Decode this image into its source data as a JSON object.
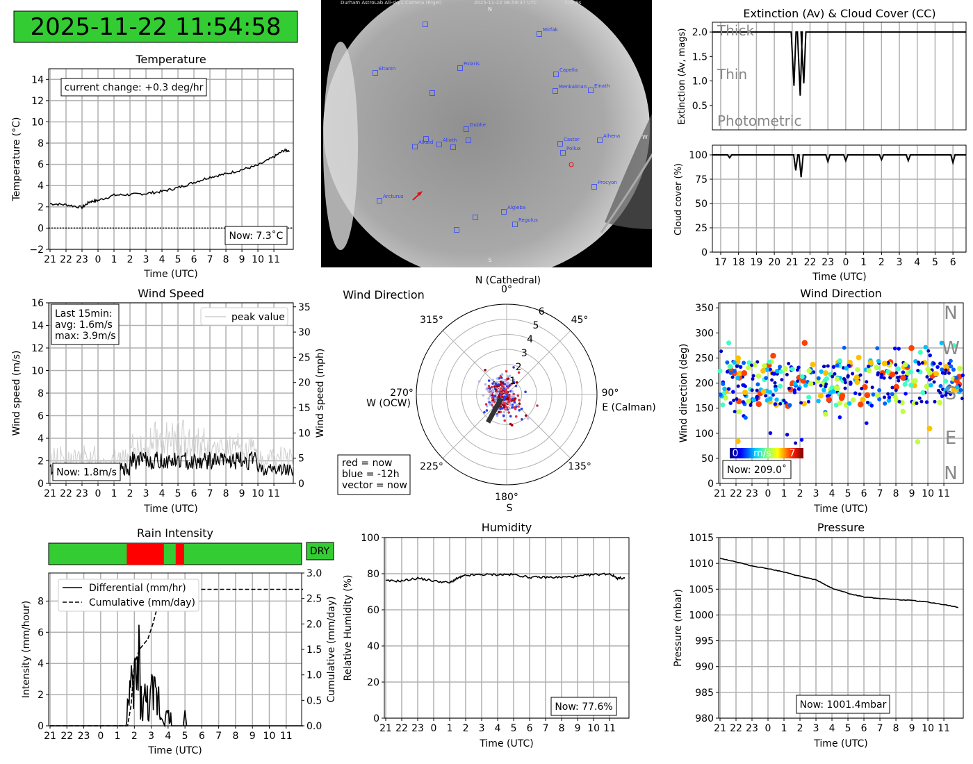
{
  "clock": {
    "datetime": "2025-11-22 11:54:58",
    "bg_color": "#33cc33"
  },
  "sky_camera": {
    "header": "Durham AstroLab All-sky1 Camera (Rigel)",
    "timestamp": "2025-11-22 06:59:37 UTC",
    "exposure": "t=0.9s",
    "compass": [
      "N",
      "W",
      "S"
    ],
    "stars": [
      "Mirfak",
      "Polaris",
      "Eltanin",
      "Capella",
      "Menkalinan",
      "Elnath",
      "Alioth",
      "Dubhe",
      "Alkaid",
      "Castor",
      "Pollux",
      "Alhena",
      "Procyon",
      "Arcturus",
      "Algieba",
      "Regulus"
    ]
  },
  "time_ticks_21": [
    "21",
    "22",
    "23",
    "0",
    "1",
    "2",
    "3",
    "4",
    "5",
    "6",
    "7",
    "8",
    "9",
    "10",
    "11"
  ],
  "time_ticks_17": [
    "17",
    "18",
    "19",
    "20",
    "21",
    "22",
    "23",
    "0",
    "1",
    "2",
    "3",
    "4",
    "5",
    "6"
  ],
  "chart_data": [
    {
      "id": "temperature",
      "type": "line",
      "title": "Temperature",
      "xlabel": "Time (UTC)",
      "ylabel": "Temperature (°C)",
      "ylim": [
        -2,
        15
      ],
      "yticks": [
        "−2",
        "0",
        "2",
        "4",
        "6",
        "8",
        "10",
        "12",
        "14"
      ],
      "x": [
        0,
        1,
        2,
        2.5,
        3,
        4,
        5,
        6,
        7,
        8,
        9,
        10,
        11,
        12,
        13,
        14,
        14.6,
        15
      ],
      "values": [
        2.3,
        2.2,
        1.95,
        2.5,
        2.6,
        3.1,
        3.15,
        3.25,
        3.45,
        3.8,
        4.3,
        4.8,
        5.1,
        5.5,
        5.9,
        6.7,
        7.3,
        7.3
      ],
      "annotation": "current change: +0.3 deg/hr",
      "now_label": "Now: 7.3˚C"
    },
    {
      "id": "extinction",
      "type": "line",
      "title": "Extinction (Av) & Cloud Cover (CC)",
      "ylabel": "Extinction (Av, mags)",
      "ylim": [
        0,
        2.2
      ],
      "yticks": [
        "0.5",
        "1.0",
        "1.5",
        "2.0"
      ],
      "bands": [
        "Thick",
        "Thin",
        "Photometric"
      ],
      "dips": [
        [
          4.1,
          0.9
        ],
        [
          4.45,
          0.7
        ],
        [
          4.65,
          0.95
        ]
      ],
      "baseline": 2.0
    },
    {
      "id": "cloud_cover",
      "type": "line",
      "ylabel": "Cloud cover (%)",
      "xlabel": "Time (UTC)",
      "ylim": [
        0,
        100
      ],
      "yticks": [
        "0",
        "25",
        "50",
        "75",
        "100"
      ],
      "dips": [
        [
          0.5,
          97
        ],
        [
          4.2,
          84
        ],
        [
          4.5,
          77
        ],
        [
          6,
          93
        ],
        [
          7,
          94
        ],
        [
          9,
          95
        ],
        [
          10.5,
          94
        ],
        [
          13,
          92
        ]
      ],
      "baseline": 100
    },
    {
      "id": "wind_speed",
      "type": "line",
      "title": "Wind Speed",
      "xlabel": "Time (UTC)",
      "ylabel": "Wind speed (m/s)",
      "ylabel2": "Wind speed (mph)",
      "ylim": [
        0,
        16
      ],
      "yticks": [
        "0",
        "2",
        "4",
        "6",
        "8",
        "10",
        "12",
        "14",
        "16"
      ],
      "y2ticks": [
        "0",
        "5",
        "10",
        "15",
        "20",
        "25",
        "30",
        "35"
      ],
      "legend": "peak value",
      "stats_lines": [
        "Last 15min:",
        "avg: 1.6m/s",
        "max: 3.9m/s"
      ],
      "now_label": "Now: 1.8m/s"
    },
    {
      "id": "wind_rose",
      "type": "scatter",
      "title": "Wind Direction",
      "direction_labels": [
        "N (Cathedral)",
        "0°",
        "45°",
        "90°",
        "E (Calman)",
        "135°",
        "180°",
        "S",
        "225°",
        "270°",
        "W (OCW)",
        "315°"
      ],
      "rlabels": [
        "1",
        "2",
        "3",
        "4",
        "5",
        "6"
      ],
      "rmax": 6,
      "legend_lines": [
        "red = now",
        "blue = -12h",
        "vector = now"
      ],
      "vector_dir_deg": 209,
      "vector_speed": 1.8
    },
    {
      "id": "wind_direction",
      "type": "scatter",
      "title": "Wind Direction",
      "xlabel": "Time (UTC)",
      "ylabel": "Wind direction (deg)",
      "ylim": [
        0,
        360
      ],
      "yticks": [
        "0",
        "50",
        "100",
        "150",
        "200",
        "250",
        "300",
        "350"
      ],
      "compass": [
        "N",
        "W",
        "S",
        "E",
        "N"
      ],
      "colorbar": {
        "min": "0",
        "unit": "m/s",
        "max": "7"
      },
      "now_label": "Now: 209.0˚"
    },
    {
      "id": "rain",
      "type": "line",
      "title": "Rain Intensity",
      "status": "DRY",
      "xlabel": "Time (UTC)",
      "ylabel": "Intensity (mm/hour)",
      "ylabel2": "Cumulative (mm/day)",
      "ylim": [
        0,
        9.8
      ],
      "yticks": [
        "0",
        "2",
        "4",
        "6",
        "8"
      ],
      "y2ticks": [
        "0.0",
        "0.5",
        "1.0",
        "1.5",
        "2.0",
        "2.5",
        "3.0"
      ],
      "legend": [
        "Differential (mm/hr)",
        "Cumulative (mm/day)"
      ],
      "cumulative": [
        [
          0,
          0
        ],
        [
          4.6,
          0
        ],
        [
          4.8,
          0.4
        ],
        [
          5.0,
          1.2
        ],
        [
          5.3,
          1.5
        ],
        [
          5.8,
          1.7
        ],
        [
          6.1,
          2.0
        ],
        [
          6.5,
          2.5
        ],
        [
          7.0,
          2.68
        ],
        [
          15,
          2.68
        ]
      ],
      "rain_periods": [
        [
          4.6,
          6.8
        ],
        [
          7.5,
          8.0
        ]
      ]
    },
    {
      "id": "humidity",
      "type": "line",
      "title": "Humidity",
      "xlabel": "Time (UTC)",
      "ylabel": "Relative Humidity (%)",
      "ylim": [
        0,
        100
      ],
      "yticks": [
        "0",
        "20",
        "40",
        "60",
        "80",
        "100"
      ],
      "x": [
        0,
        1,
        2,
        3,
        4,
        4.5,
        5,
        6,
        7,
        8,
        9,
        10,
        11,
        12,
        13,
        14,
        14.5,
        15
      ],
      "values": [
        76,
        76,
        77.5,
        76,
        75,
        77.5,
        79,
        79.5,
        79.5,
        79.5,
        78,
        78,
        78,
        78.5,
        79.5,
        80,
        77.5,
        77.6
      ],
      "now_label": "Now: 77.6%"
    },
    {
      "id": "pressure",
      "type": "line",
      "title": "Pressure",
      "xlabel": "Time (UTC)",
      "ylabel": "Pressure (mbar)",
      "ylim": [
        980,
        1015
      ],
      "yticks": [
        "980",
        "985",
        "990",
        "995",
        "1000",
        "1005",
        "1010",
        "1015"
      ],
      "x": [
        0,
        1,
        2,
        3,
        4,
        5,
        6,
        6.5,
        7,
        8,
        9,
        10,
        11,
        12,
        13,
        14,
        15
      ],
      "values": [
        1011,
        1010.3,
        1009.5,
        1009,
        1008.3,
        1007.5,
        1006.8,
        1006,
        1005.2,
        1004.2,
        1003.5,
        1003.2,
        1003,
        1002.8,
        1002.5,
        1002,
        1001.4
      ],
      "now_label": "Now: 1001.4mbar"
    }
  ]
}
